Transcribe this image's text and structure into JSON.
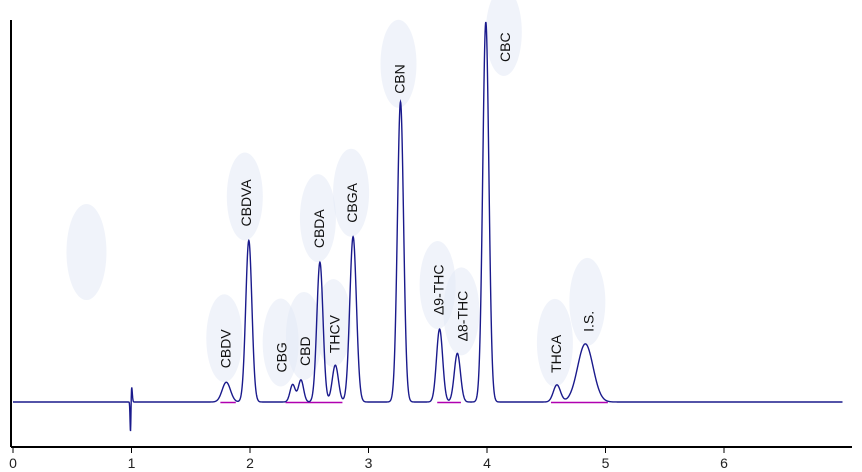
{
  "chart_data": {
    "type": "line",
    "title": "",
    "xlabel": "",
    "ylabel": "",
    "xlim": [
      0,
      7
    ],
    "ylim": [
      -0.1,
      1.0
    ],
    "x_ticks": [
      "0",
      "1",
      "2",
      "3",
      "4",
      "5",
      "6"
    ],
    "baseline": 0,
    "colors": {
      "trace": "#1a1a8c",
      "baseline_segment": "#b000b0",
      "axis": "#000000",
      "blob": "#e3e9f5"
    },
    "series": [
      {
        "values": [],
        "peaks": [
          {
            "label": "CBDV",
            "x": 1.8,
            "height": 0.052,
            "width": 0.035
          },
          {
            "label": "CBDVA",
            "x": 1.99,
            "height": 0.425,
            "width": 0.026
          },
          {
            "label": "CBG",
            "x": 2.36,
            "height": 0.046,
            "width": 0.022
          },
          {
            "label": "CBD",
            "x": 2.43,
            "height": 0.058,
            "width": 0.022
          },
          {
            "label": "CBDA",
            "x": 2.59,
            "height": 0.368,
            "width": 0.026
          },
          {
            "label": "THCV",
            "x": 2.72,
            "height": 0.097,
            "width": 0.026
          },
          {
            "label": "CBGA",
            "x": 2.87,
            "height": 0.435,
            "width": 0.028
          },
          {
            "label": "CBN",
            "x": 3.27,
            "height": 0.79,
            "width": 0.026
          },
          {
            "label": "Δ9-THC",
            "x": 3.6,
            "height": 0.192,
            "width": 0.026
          },
          {
            "label": "Δ8-THC",
            "x": 3.75,
            "height": 0.128,
            "width": 0.026
          },
          {
            "label": "CBC",
            "x": 3.99,
            "height": 1.0,
            "width": 0.026
          },
          {
            "label": "THCA",
            "x": 4.59,
            "height": 0.045,
            "width": 0.03
          },
          {
            "label": "I.S.",
            "x": 4.83,
            "height": 0.153,
            "width": 0.065
          }
        ],
        "artifacts": [
          {
            "x": 1.0,
            "up": 0.045,
            "down": -0.095
          }
        ]
      }
    ],
    "annotations": {
      "peak_labels": [
        "CBDV",
        "CBDVA",
        "CBG",
        "CBD",
        "CBDA",
        "THCV",
        "CBGA",
        "CBN",
        "Δ9-THC",
        "Δ8-THC",
        "CBC",
        "THCA",
        "I.S."
      ]
    },
    "grid": false,
    "legend": "none"
  }
}
